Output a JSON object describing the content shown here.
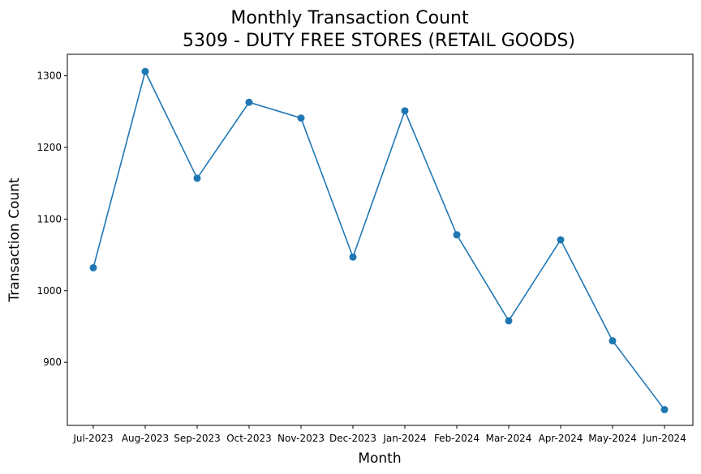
{
  "chart_data": {
    "type": "line",
    "title_line1": "Monthly Transaction Count",
    "title_line2": "5309 - DUTY FREE STORES (RETAIL GOODS)",
    "xlabel": "Month",
    "ylabel": "Transaction Count",
    "categories": [
      "Jul-2023",
      "Aug-2023",
      "Sep-2023",
      "Oct-2023",
      "Nov-2023",
      "Dec-2023",
      "Jan-2024",
      "Feb-2024",
      "Mar-2024",
      "Apr-2024",
      "May-2024",
      "Jun-2024"
    ],
    "values": [
      1032,
      1306,
      1157,
      1263,
      1241,
      1047,
      1251,
      1078,
      958,
      1071,
      930,
      834
    ],
    "yticks": [
      900,
      1000,
      1100,
      1200,
      1300
    ],
    "ylim": [
      812,
      1330
    ],
    "grid": false,
    "line_color": "#1f77b4",
    "marker": "circle"
  }
}
